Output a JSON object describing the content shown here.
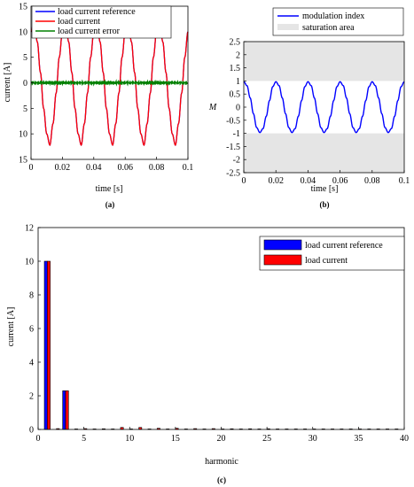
{
  "colors": {
    "reference": "#0000ff",
    "current": "#ff0000",
    "error": "#008000",
    "modulation": "#0000ff",
    "saturation": "#e5e5e5"
  },
  "chart_data": [
    {
      "panel": "(a)",
      "type": "line",
      "xlabel": "time [s]",
      "ylabel": "current [A]",
      "xlim": [
        0,
        0.1
      ],
      "ylim": [
        -15,
        15
      ],
      "xticks": [
        "0",
        "0.02",
        "0.04",
        "0.06",
        "0.08",
        "0.1"
      ],
      "yticks": [
        "15",
        "10",
        "5",
        "0",
        "5",
        "10",
        "15"
      ],
      "grid": false,
      "legend_position": "top-left",
      "series": [
        {
          "name": "load current reference",
          "color": "#0000ff",
          "x": [
            0,
            0.002,
            0.004,
            0.006,
            0.008,
            0.01,
            0.012,
            0.014,
            0.016,
            0.018,
            0.02
          ],
          "y": [
            10,
            12.2,
            8,
            2,
            -5,
            -10,
            -12.2,
            -8,
            -2,
            5,
            10
          ],
          "periodic": true,
          "period": 0.02
        },
        {
          "name": "load current",
          "color": "#ff0000",
          "x": [
            0,
            0.002,
            0.004,
            0.006,
            0.008,
            0.01,
            0.012,
            0.014,
            0.016,
            0.018,
            0.02
          ],
          "y": [
            10,
            12.2,
            8,
            2,
            -5,
            -10,
            -12.2,
            -8,
            -2,
            5,
            10
          ],
          "periodic": true,
          "period": 0.02
        },
        {
          "name": "load current error",
          "color": "#008000",
          "x": [
            0,
            0.1
          ],
          "y": [
            0,
            0
          ],
          "noise_amplitude": 0.4
        }
      ]
    },
    {
      "panel": "(b)",
      "type": "line",
      "xlabel": "time [s]",
      "ylabel": "M",
      "xlim": [
        0,
        0.1
      ],
      "ylim": [
        -2.5,
        2.5
      ],
      "xticks": [
        "0",
        "0.02",
        "0.04",
        "0.06",
        "0.08",
        "0.1"
      ],
      "yticks": [
        "2.5",
        "2",
        "1.5",
        "1",
        "0.5",
        "0",
        "-0.5",
        "-1",
        "-1.5",
        "-2",
        "-2.5"
      ],
      "saturation_limits": [
        -1,
        1
      ],
      "grid": false,
      "legend_position": "top-right",
      "series": [
        {
          "name": "modulation index",
          "color": "#0000ff",
          "x": [
            0,
            0.002,
            0.004,
            0.006,
            0.008,
            0.01,
            0.012,
            0.014,
            0.016,
            0.018,
            0.02
          ],
          "y": [
            0.97,
            0.82,
            0.35,
            -0.25,
            -0.78,
            -0.97,
            -0.82,
            -0.35,
            0.25,
            0.78,
            0.97
          ],
          "periodic": true,
          "period": 0.02
        }
      ],
      "shaded_legend": "saturation area"
    },
    {
      "panel": "(c)",
      "type": "bar",
      "xlabel": "harmonic",
      "ylabel": "current [A]",
      "xlim": [
        0,
        40
      ],
      "ylim": [
        0,
        12
      ],
      "xticks": [
        "0",
        "5",
        "10",
        "15",
        "20",
        "25",
        "30",
        "35",
        "40"
      ],
      "yticks": [
        "0",
        "2",
        "4",
        "6",
        "8",
        "10",
        "12"
      ],
      "grid": false,
      "legend_position": "top-right",
      "harmonics": [
        1,
        2,
        3,
        4,
        5,
        6,
        7,
        8,
        9,
        10,
        11,
        12,
        13,
        14,
        15,
        16,
        17,
        18,
        19,
        20,
        21,
        22,
        23,
        24,
        25,
        26,
        27,
        28,
        29,
        30,
        31,
        32,
        33,
        34,
        35,
        36,
        37,
        38,
        39
      ],
      "series": [
        {
          "name": "load current reference",
          "color": "#0000ff",
          "values": [
            10,
            0,
            2.3,
            0,
            0,
            0,
            0,
            0,
            0,
            0,
            0,
            0,
            0,
            0,
            0,
            0,
            0,
            0,
            0,
            0,
            0,
            0,
            0,
            0,
            0,
            0,
            0,
            0,
            0,
            0,
            0,
            0,
            0,
            0,
            0,
            0,
            0,
            0,
            0
          ]
        },
        {
          "name": "load current",
          "color": "#ff0000",
          "values": [
            10,
            0.05,
            2.3,
            0.03,
            0.05,
            0.03,
            0.04,
            0.03,
            0.12,
            0.03,
            0.12,
            0.03,
            0.07,
            0.03,
            0.07,
            0.03,
            0.05,
            0.03,
            0.05,
            0.03,
            0.04,
            0.03,
            0.04,
            0.03,
            0.04,
            0.03,
            0.03,
            0.03,
            0.03,
            0.03,
            0.03,
            0.03,
            0.03,
            0.03,
            0.03,
            0.03,
            0.03,
            0.03,
            0.03
          ]
        }
      ]
    }
  ]
}
